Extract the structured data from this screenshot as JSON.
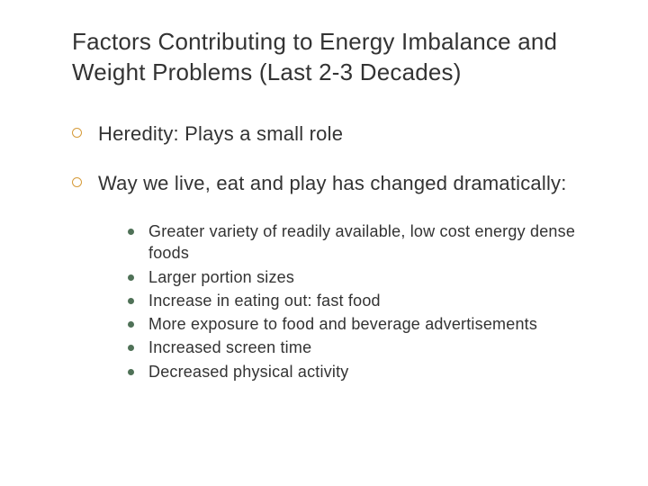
{
  "slide": {
    "title": "Factors Contributing to Energy Imbalance and Weight Problems (Last 2-3 Decades)",
    "title_fontsize": 26,
    "title_color": "#333333",
    "body_font": "Verdana",
    "title_font": "Arial",
    "background_color": "#ffffff",
    "main_bullet_color": "#d69b3a",
    "sub_bullet_color": "#4f7157",
    "main_items": [
      {
        "text": "Heredity: Plays a small role",
        "sub_items": []
      },
      {
        "text": "Way we live, eat and play has changed dramatically:",
        "sub_items": [
          "Greater variety of readily available, low cost energy dense foods",
          "Larger portion sizes",
          "Increase in eating out: fast food",
          "More exposure to food and beverage advertisements",
          "Increased screen time",
          "Decreased physical activity"
        ]
      }
    ],
    "main_fontsize": 22,
    "sub_fontsize": 18
  }
}
